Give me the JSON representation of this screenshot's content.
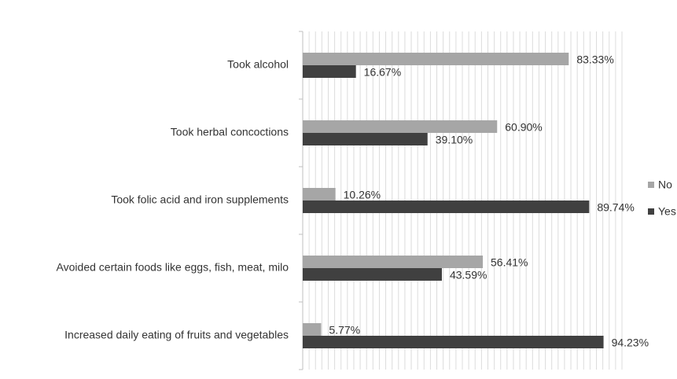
{
  "chart_data": {
    "type": "hbar",
    "categories": [
      "Took alcohol",
      "Took herbal concoctions",
      "Took folic acid and iron supplements",
      "Avoided certain foods like eggs, fish, meat, milo",
      "Increased daily eating of fruits and vegetables"
    ],
    "series": [
      {
        "name": "No",
        "color": "#a6a6a6",
        "values": [
          83.33,
          60.9,
          10.26,
          56.41,
          5.77
        ],
        "value_labels": [
          "83.33%",
          "60.90%",
          "10.26%",
          "56.41%",
          "5.77%"
        ]
      },
      {
        "name": "Yes",
        "color": "#404040",
        "values": [
          16.67,
          39.1,
          89.74,
          43.59,
          94.23
        ],
        "value_labels": [
          "16.67%",
          "39.10%",
          "89.74%",
          "43.59%",
          "94.23%"
        ]
      }
    ],
    "xlim": [
      0,
      100
    ],
    "xticks": [
      0,
      2,
      4,
      6,
      8,
      10,
      12,
      14,
      16,
      18,
      20,
      22,
      24,
      26,
      28,
      30,
      32,
      34,
      36,
      38,
      40,
      42,
      44,
      46,
      48,
      50,
      52,
      54,
      56,
      58,
      60,
      62,
      64,
      66,
      68,
      70,
      72,
      74,
      76,
      78,
      80,
      82,
      84,
      86,
      88,
      90,
      92,
      94,
      96,
      98,
      100
    ],
    "grid": true,
    "legend": "right"
  }
}
